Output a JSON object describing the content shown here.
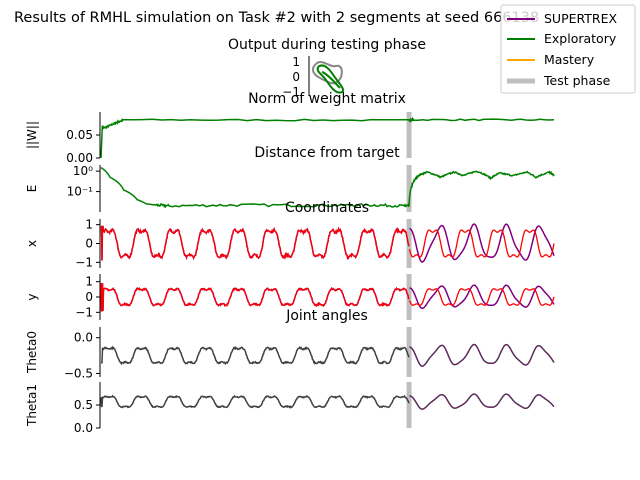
{
  "figure": {
    "title": "Results of RMHL simulation on Task #2 with 2 segments at seed 666138"
  },
  "legend": {
    "entries": [
      {
        "label": "SUPERTREX",
        "color": "#800080"
      },
      {
        "label": "Exploratory",
        "color": "#008000"
      },
      {
        "label": "Mastery",
        "color": "#ffa500"
      },
      {
        "label": "Test phase",
        "color": "#bfbfbf"
      }
    ]
  },
  "chart_data": [
    {
      "type": "line",
      "title": "Output during testing phase",
      "yticks": [
        "1",
        "0",
        "−1"
      ],
      "series": [
        {
          "name": "Target",
          "color": "#808080"
        },
        {
          "name": "Exploratory",
          "color": "#008000"
        }
      ]
    },
    {
      "type": "line",
      "title": "Norm of weight matrix",
      "ylabel": "||W||",
      "yticks": [
        "0.05",
        "0.00"
      ],
      "ylim": [
        0,
        0.1
      ],
      "test_phase_x": 0.68,
      "series": [
        {
          "name": "Exploratory",
          "color": "#008000",
          "x": [
            0,
            0.003,
            0.006,
            0.03,
            0.05,
            0.68,
            0.69,
            1
          ],
          "y": [
            0.0,
            0.07,
            0.065,
            0.075,
            0.083,
            0.082,
            0.083,
            0.083
          ]
        }
      ]
    },
    {
      "type": "line",
      "title": "Distance from target",
      "ylabel": "E",
      "scale": "log",
      "yticks": [
        "10⁰",
        "10⁻¹"
      ],
      "ylim": [
        0.01,
        2
      ],
      "test_phase_x": 0.68,
      "series": [
        {
          "name": "Exploratory",
          "color": "#008000",
          "x": [
            0,
            0.02,
            0.05,
            0.08,
            0.1,
            0.12,
            0.15,
            0.3,
            0.5,
            0.6,
            0.67,
            0.68,
            0.69,
            0.7,
            0.72,
            0.75,
            0.78,
            0.8,
            0.83,
            0.86,
            0.88,
            0.91,
            0.94,
            0.96,
            0.99,
            1
          ],
          "y": [
            1.5,
            0.5,
            0.12,
            0.04,
            0.025,
            0.022,
            0.02,
            0.022,
            0.021,
            0.022,
            0.02,
            0.02,
            0.3,
            0.6,
            0.9,
            0.5,
            0.9,
            0.6,
            1.0,
            0.45,
            0.8,
            0.6,
            0.9,
            0.5,
            0.9,
            0.6
          ]
        }
      ]
    },
    {
      "type": "line",
      "title": "Coordinates",
      "ylabel": "x",
      "yticks": [
        "1",
        "0",
        "−1"
      ],
      "ylim": [
        -1.3,
        1.3
      ],
      "test_phase_x": 0.68,
      "series": [
        {
          "name": "SUPERTREX",
          "color": "#800080"
        },
        {
          "name": "Target",
          "color": "#ff0000"
        }
      ]
    },
    {
      "type": "line",
      "title": "",
      "ylabel": "y",
      "yticks": [
        "1",
        "0",
        "−1"
      ],
      "ylim": [
        -1.5,
        1.5
      ],
      "test_phase_x": 0.68,
      "series": [
        {
          "name": "SUPERTREX",
          "color": "#800080"
        },
        {
          "name": "Target",
          "color": "#ff0000"
        }
      ]
    },
    {
      "type": "line",
      "title": "Joint angles",
      "ylabel": "Theta0",
      "yticks": [
        "0.0",
        "−0.5"
      ],
      "ylim": [
        -0.55,
        0.15
      ],
      "test_phase_x": 0.68,
      "series": [
        {
          "name": "SUPERTREX",
          "color": "#5a2a5a"
        },
        {
          "name": "Training",
          "color": "#404040"
        }
      ]
    },
    {
      "type": "line",
      "title": "",
      "ylabel": "Theta1",
      "yticks": [
        "0.5",
        "0.0"
      ],
      "ylim": [
        0,
        1
      ],
      "test_phase_x": 0.68,
      "series": [
        {
          "name": "SUPERTREX",
          "color": "#5a2a5a"
        },
        {
          "name": "Training",
          "color": "#404040"
        }
      ]
    }
  ]
}
